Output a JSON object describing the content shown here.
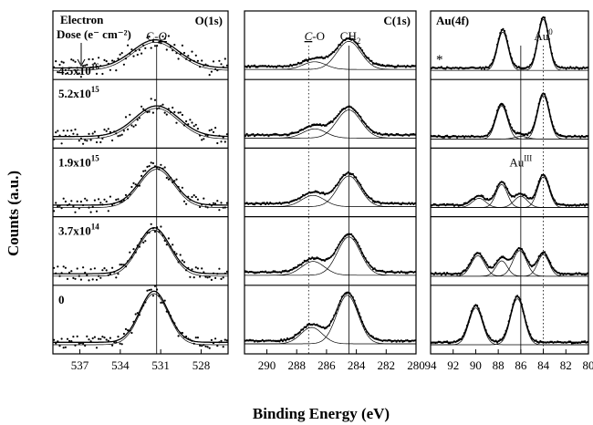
{
  "chart_data": {
    "type": "line",
    "ylabel": "Counts (a.u.)",
    "xlabel": "Binding Energy (eV)",
    "dose_header": [
      "Electron",
      "Dose (e⁻ cm⁻²)"
    ],
    "doses": [
      {
        "mant": "4.5x10",
        "exp": "16"
      },
      {
        "mant": "5.2x10",
        "exp": "15"
      },
      {
        "mant": "1.9x10",
        "exp": "15"
      },
      {
        "mant": "3.7x10",
        "exp": "14"
      },
      {
        "mant": "0",
        "exp": ""
      }
    ],
    "star_label": "*",
    "panels": [
      {
        "key": "O",
        "title": "O(1s)",
        "xlim": [
          539,
          526
        ],
        "ticks": [
          537,
          534,
          531,
          528
        ],
        "peak_labels": [
          {
            "text": "C-O",
            "italic_part": "O",
            "x": 531.3,
            "row": 0
          }
        ],
        "ref_lines": [
          {
            "x": 531.3,
            "style": "solid"
          }
        ],
        "rows": [
          {
            "baseline": 0.12,
            "noise": 0.18,
            "components": [
              {
                "center": 531.4,
                "fwhm": 4.0,
                "height": 0.55
              }
            ]
          },
          {
            "baseline": 0.12,
            "noise": 0.16,
            "components": [
              {
                "center": 531.3,
                "fwhm": 3.8,
                "height": 0.6
              }
            ]
          },
          {
            "baseline": 0.12,
            "noise": 0.15,
            "components": [
              {
                "center": 531.3,
                "fwhm": 3.0,
                "height": 0.75
              }
            ]
          },
          {
            "baseline": 0.12,
            "noise": 0.14,
            "components": [
              {
                "center": 531.5,
                "fwhm": 2.8,
                "height": 0.9
              }
            ]
          },
          {
            "baseline": 0.12,
            "noise": 0.12,
            "components": [
              {
                "center": 531.5,
                "fwhm": 2.5,
                "height": 1.0
              }
            ]
          }
        ]
      },
      {
        "key": "C",
        "title": "C(1s)",
        "xlim": [
          291.5,
          280
        ],
        "ticks": [
          290,
          288,
          286,
          284,
          282,
          280
        ],
        "peak_labels": [
          {
            "text": "C-O",
            "italic_part": "C",
            "x": 286.8,
            "row": 0
          },
          {
            "text": "CH2",
            "sub": "2",
            "x": 284.4,
            "row": 0
          }
        ],
        "ref_lines": [
          {
            "x": 287.2,
            "style": "dotted"
          },
          {
            "x": 284.5,
            "style": "solid"
          }
        ],
        "rows": [
          {
            "baseline": 0.15,
            "noise": 0.02,
            "components": [
              {
                "center": 286.8,
                "fwhm": 1.8,
                "height": 0.15
              },
              {
                "center": 284.5,
                "fwhm": 1.9,
                "height": 0.55
              }
            ]
          },
          {
            "baseline": 0.15,
            "noise": 0.02,
            "components": [
              {
                "center": 286.8,
                "fwhm": 1.8,
                "height": 0.18
              },
              {
                "center": 284.5,
                "fwhm": 1.9,
                "height": 0.55
              }
            ]
          },
          {
            "baseline": 0.15,
            "noise": 0.02,
            "components": [
              {
                "center": 286.9,
                "fwhm": 1.8,
                "height": 0.22
              },
              {
                "center": 284.5,
                "fwhm": 1.8,
                "height": 0.6
              }
            ]
          },
          {
            "baseline": 0.15,
            "noise": 0.02,
            "components": [
              {
                "center": 286.9,
                "fwhm": 1.8,
                "height": 0.27
              },
              {
                "center": 284.5,
                "fwhm": 1.8,
                "height": 0.75
              }
            ]
          },
          {
            "baseline": 0.15,
            "noise": 0.02,
            "components": [
              {
                "center": 287.0,
                "fwhm": 1.7,
                "height": 0.32
              },
              {
                "center": 284.6,
                "fwhm": 1.7,
                "height": 0.95
              }
            ]
          }
        ]
      },
      {
        "key": "Au",
        "title": "Au(4f)",
        "xlim": [
          94,
          80
        ],
        "ticks": [
          94,
          92,
          90,
          88,
          86,
          84,
          82,
          80
        ],
        "peak_labels": [
          {
            "text": "Au0",
            "sup": "0",
            "x": 84.0,
            "row": 0
          },
          {
            "text": "AuIII",
            "sup": "III",
            "x": 86.0,
            "row": 2
          }
        ],
        "ref_lines": [
          {
            "x": 86.0,
            "style": "solid"
          },
          {
            "x": 84.0,
            "style": "dotted"
          }
        ],
        "rows": [
          {
            "baseline": 0.12,
            "noise": 0.02,
            "components": [
              {
                "center": 87.6,
                "fwhm": 1.1,
                "height": 0.75
              },
              {
                "center": 84.0,
                "fwhm": 1.1,
                "height": 1.0
              }
            ]
          },
          {
            "baseline": 0.12,
            "noise": 0.02,
            "components": [
              {
                "center": 87.7,
                "fwhm": 1.2,
                "height": 0.65
              },
              {
                "center": 84.0,
                "fwhm": 1.2,
                "height": 0.85
              },
              {
                "center": 86.0,
                "fwhm": 1.3,
                "height": 0.05
              }
            ]
          },
          {
            "baseline": 0.12,
            "noise": 0.02,
            "components": [
              {
                "center": 89.7,
                "fwhm": 1.4,
                "height": 0.18
              },
              {
                "center": 86.0,
                "fwhm": 1.4,
                "height": 0.22
              },
              {
                "center": 87.7,
                "fwhm": 1.2,
                "height": 0.45
              },
              {
                "center": 84.0,
                "fwhm": 1.2,
                "height": 0.6
              }
            ]
          },
          {
            "baseline": 0.12,
            "noise": 0.02,
            "components": [
              {
                "center": 89.8,
                "fwhm": 1.4,
                "height": 0.4
              },
              {
                "center": 86.1,
                "fwhm": 1.4,
                "height": 0.5
              },
              {
                "center": 87.7,
                "fwhm": 1.2,
                "height": 0.3
              },
              {
                "center": 84.0,
                "fwhm": 1.2,
                "height": 0.42
              }
            ]
          },
          {
            "baseline": 0.12,
            "noise": 0.02,
            "components": [
              {
                "center": 90.0,
                "fwhm": 1.4,
                "height": 0.72
              },
              {
                "center": 86.3,
                "fwhm": 1.4,
                "height": 0.9
              }
            ]
          }
        ]
      }
    ]
  }
}
